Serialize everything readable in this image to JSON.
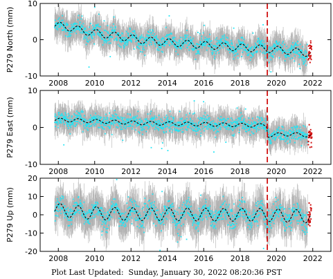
{
  "footer": {
    "label": "Plot Last Updated:",
    "timestamp": "Sunday, January 30, 2022 08:20:36 PST"
  },
  "colors": {
    "error_bars": "#b0b0b0",
    "points": "#22e5f5",
    "model": "#000000",
    "recent_points": "#d01010",
    "event_line": "#d01010"
  },
  "chart_data": [
    {
      "type": "scatter",
      "ylabel": "P279 North (mm)",
      "x_ticks": [
        2008,
        2010,
        2012,
        2014,
        2016,
        2018,
        2020,
        2022
      ],
      "y_ticks": [
        -10,
        0,
        10
      ],
      "xlim": [
        2007.0,
        2023.0
      ],
      "ylim": [
        -10,
        10
      ],
      "event_year": 2019.5,
      "series": [
        {
          "x": [
            2007.8,
            2008.5,
            2009.5,
            2010.5,
            2011.5,
            2012.5,
            2013.5,
            2014.5,
            2015.5,
            2016.5,
            2017.5,
            2018.5,
            2019.5,
            2020.5,
            2021.5,
            2021.9
          ],
          "y": [
            4.0,
            3.5,
            2.3,
            1.5,
            0.8,
            0.0,
            -0.5,
            -0.9,
            -1.3,
            -1.6,
            -2.0,
            -2.3,
            -2.5,
            -3.0,
            -3.5,
            -3.8
          ]
        }
      ],
      "seasonal_amplitude": 1.0,
      "scatter_spread": 2.0
    },
    {
      "type": "scatter",
      "ylabel": "P279 East (mm)",
      "x_ticks": [
        2008,
        2010,
        2012,
        2014,
        2016,
        2018,
        2020,
        2022
      ],
      "y_ticks": [
        -10,
        0,
        10
      ],
      "xlim": [
        2007.0,
        2023.0
      ],
      "ylim": [
        -10,
        10
      ],
      "event_year": 2019.5,
      "series": [
        {
          "x": [
            2007.8,
            2008.5,
            2009.5,
            2010.5,
            2011.5,
            2012.5,
            2013.5,
            2014.5,
            2015.5,
            2016.5,
            2017.5,
            2018.5,
            2019.45,
            2019.55,
            2020.5,
            2021.5,
            2021.9
          ],
          "y": [
            2.0,
            2.0,
            1.8,
            1.6,
            1.4,
            1.2,
            1.1,
            1.0,
            0.9,
            0.8,
            0.7,
            0.6,
            0.5,
            -2.2,
            -1.8,
            -2.0,
            -2.2
          ]
        }
      ],
      "seasonal_amplitude": 0.5,
      "scatter_spread": 1.8
    },
    {
      "type": "scatter",
      "ylabel": "P279 Up (mm)",
      "x_ticks": [
        2008,
        2010,
        2012,
        2014,
        2016,
        2018,
        2020,
        2022
      ],
      "y_ticks": [
        -20,
        -10,
        0,
        10,
        20
      ],
      "xlim": [
        2007.0,
        2023.0
      ],
      "ylim": [
        -20,
        20
      ],
      "event_year": 2019.5,
      "series": [
        {
          "x": [
            2007.8,
            2009.0,
            2011.0,
            2013.0,
            2015.0,
            2017.0,
            2019.0,
            2020.5,
            2021.9
          ],
          "y": [
            3.0,
            1.5,
            0.5,
            0.3,
            0.2,
            0.0,
            0.0,
            -0.5,
            -1.0
          ]
        }
      ],
      "seasonal_amplitude": 3.5,
      "scatter_spread": 5.0
    }
  ]
}
